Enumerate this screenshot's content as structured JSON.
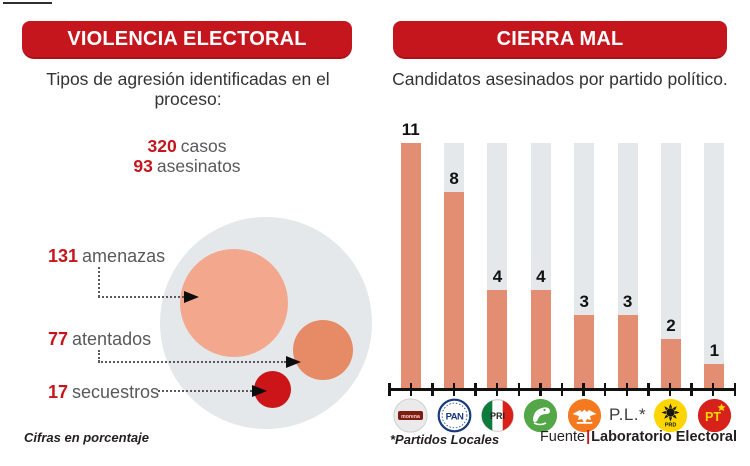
{
  "colors": {
    "banner_red": "#C5161D",
    "accent_red": "#C5161D",
    "bar_salmon": "#E38D72",
    "track_gray": "#E4E8EA",
    "bubble_large": "#F3A88D",
    "bubble_medium": "#E78A66",
    "bubble_small": "#CC1519",
    "text_dark": "#231F20",
    "text_gray": "#58595B"
  },
  "left_panel": {
    "banner_title": "VIOLENCIA ELECTORAL",
    "subtitle": "Tipos de agresión identificadas en el proceso:",
    "stats": [
      {
        "value": "320",
        "label": "casos"
      },
      {
        "value": "93",
        "label": "asesinatos"
      }
    ],
    "bubble_labels": [
      {
        "value": "131",
        "label": "amenazas"
      },
      {
        "value": "77",
        "label": "atentados"
      },
      {
        "value": "17",
        "label": "secuestros"
      }
    ],
    "footnote": "Cifras en porcentaje"
  },
  "right_panel": {
    "banner_title": "CIERRA MAL",
    "subtitle": "Candidatos asesinados por partido político.",
    "pl_label": "P.L.*",
    "footnote": "*Partidos Locales",
    "source_prefix": "Fuente",
    "source_divider": "|",
    "source_name": "Laboratorio Electoral"
  },
  "chart_data": [
    {
      "type": "bubble",
      "title": "Tipos de agresión identificadas en el proceso:",
      "totals": {
        "casos": 320,
        "asesinatos": 93
      },
      "points": [
        {
          "label": "amenazas",
          "value": 131
        },
        {
          "label": "atentados",
          "value": 77
        },
        {
          "label": "secuestros",
          "value": 17
        }
      ],
      "note": "Cifras en porcentaje",
      "layout": "three proportional circles inside one large light-gray circle, labels connected by dotted arrows"
    },
    {
      "type": "bar",
      "title": "Candidatos asesinados por partido político.",
      "categories": [
        "morena",
        "pan",
        "pri",
        "pvem",
        "movimiento-ciudadano",
        "partidos-locales",
        "prd",
        "pt"
      ],
      "category_labels": [
        "",
        "",
        "",
        "",
        "",
        "P.L.*",
        "",
        ""
      ],
      "values": [
        11,
        8,
        4,
        4,
        3,
        3,
        2,
        1
      ],
      "ylim": [
        0,
        10
      ],
      "grid": false,
      "legend": "none",
      "layout": "full-height gray background tracks behind each salmon bar; ruler-style black x-axis with ticks; party logos as x labels",
      "footnote": "*Partidos Locales",
      "source": "Fuente|Laboratorio Electoral"
    }
  ]
}
